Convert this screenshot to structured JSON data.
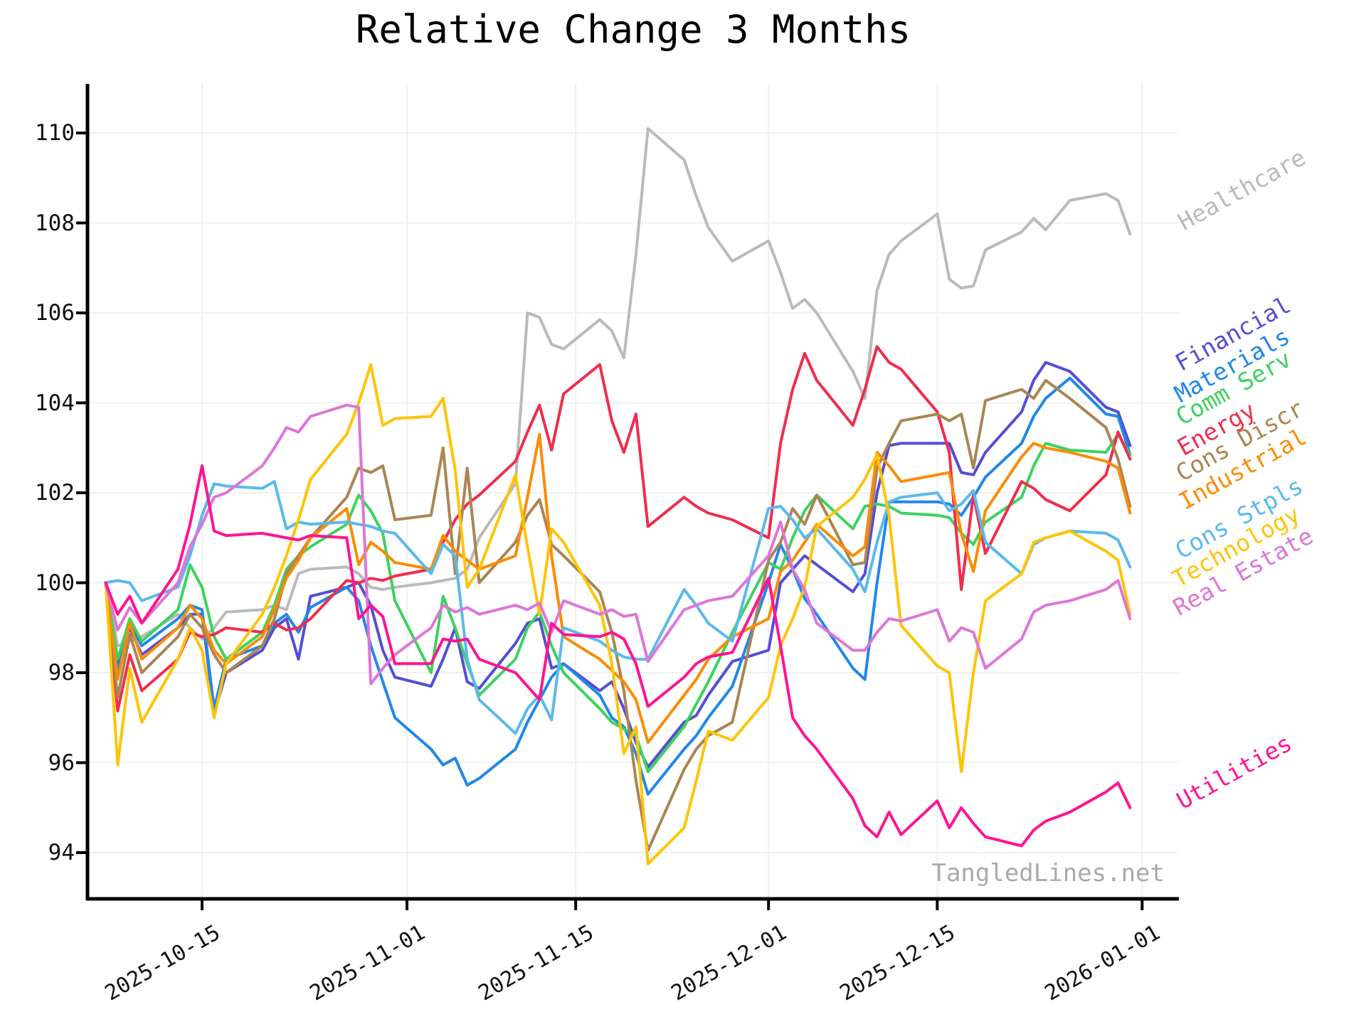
{
  "chart": {
    "title": "Relative Change 3 Months",
    "watermark": "TangledLines.net"
  },
  "chart_data": {
    "type": "line",
    "title": "Relative Change 3 Months",
    "xlabel": "",
    "ylabel": "",
    "grid": true,
    "legend_position": "right-outside-rotated",
    "ylim": [
      92.9,
      111.2
    ],
    "y_ticks": [
      94,
      96,
      98,
      100,
      102,
      104,
      106,
      108,
      110
    ],
    "x_tick_labels": [
      "2025-10-15",
      "2025-11-01",
      "2025-11-15",
      "2025-12-01",
      "2025-12-15",
      "2026-01-01"
    ],
    "x": [
      "2025-10-07",
      "2025-10-08",
      "2025-10-09",
      "2025-10-10",
      "2025-10-13",
      "2025-10-14",
      "2025-10-15",
      "2025-10-16",
      "2025-10-17",
      "2025-10-20",
      "2025-10-21",
      "2025-10-22",
      "2025-10-23",
      "2025-10-24",
      "2025-10-27",
      "2025-10-28",
      "2025-10-29",
      "2025-10-30",
      "2025-10-31",
      "2025-11-03",
      "2025-11-04",
      "2025-11-05",
      "2025-11-06",
      "2025-11-07",
      "2025-11-10",
      "2025-11-11",
      "2025-11-12",
      "2025-11-13",
      "2025-11-14",
      "2025-11-17",
      "2025-11-18",
      "2025-11-19",
      "2025-11-20",
      "2025-11-21",
      "2025-11-24",
      "2025-11-25",
      "2025-11-26",
      "2025-11-28",
      "2025-12-01",
      "2025-12-02",
      "2025-12-03",
      "2025-12-04",
      "2025-12-05",
      "2025-12-08",
      "2025-12-09",
      "2025-12-10",
      "2025-12-11",
      "2025-12-12",
      "2025-12-15",
      "2025-12-16",
      "2025-12-17",
      "2025-12-18",
      "2025-12-19",
      "2025-12-22",
      "2025-12-23",
      "2025-12-24",
      "2025-12-26",
      "2025-12-29",
      "2025-12-30",
      "2025-12-31"
    ],
    "series": [
      {
        "name": "Healthcare",
        "color": "#bababa",
        "values": [
          100.0,
          98.6,
          98.7,
          98.8,
          99.3,
          99.0,
          98.75,
          99.0,
          99.35,
          99.4,
          99.5,
          99.4,
          100.2,
          100.3,
          100.35,
          100.2,
          99.9,
          99.85,
          99.9,
          100.0,
          100.05,
          100.1,
          100.3,
          101.0,
          102.2,
          106.0,
          105.9,
          105.3,
          105.2,
          105.85,
          105.6,
          105.0,
          107.3,
          110.1,
          109.4,
          108.6,
          107.9,
          107.15,
          107.6,
          106.9,
          106.1,
          106.3,
          106.0,
          104.7,
          104.1,
          106.5,
          107.3,
          107.6,
          108.2,
          106.75,
          106.55,
          106.6,
          107.4,
          107.8,
          108.1,
          107.85,
          108.5,
          108.65,
          108.5,
          107.75
        ]
      },
      {
        "name": "Financial",
        "color": "#544ed4",
        "values": [
          100.0,
          98.2,
          99.0,
          98.4,
          99.0,
          99.3,
          99.3,
          97.1,
          98.0,
          98.5,
          99.0,
          99.2,
          98.3,
          99.7,
          99.9,
          100.0,
          99.5,
          98.5,
          97.9,
          97.7,
          98.3,
          99.0,
          97.8,
          97.65,
          98.65,
          99.1,
          99.2,
          98.1,
          98.2,
          97.6,
          97.8,
          97.2,
          96.45,
          95.9,
          96.9,
          97.05,
          97.5,
          98.25,
          98.5,
          100.0,
          100.3,
          100.6,
          100.4,
          99.8,
          100.2,
          102.0,
          103.05,
          103.1,
          103.1,
          103.1,
          102.45,
          102.4,
          102.9,
          103.8,
          104.5,
          104.9,
          104.7,
          103.9,
          103.8,
          103.05
        ]
      },
      {
        "name": "Materials",
        "color": "#2088e8",
        "values": [
          100.0,
          98.0,
          99.1,
          98.6,
          99.2,
          99.5,
          99.4,
          97.2,
          98.3,
          98.6,
          99.1,
          99.3,
          98.9,
          99.45,
          99.9,
          99.6,
          98.6,
          97.8,
          97.0,
          96.3,
          95.95,
          96.1,
          95.5,
          95.65,
          96.3,
          96.9,
          97.4,
          97.9,
          98.2,
          97.5,
          97.0,
          96.8,
          96.2,
          95.3,
          96.3,
          96.6,
          97.0,
          97.7,
          100.0,
          100.85,
          100.3,
          99.65,
          99.3,
          98.1,
          97.85,
          100.0,
          101.8,
          101.8,
          101.8,
          101.75,
          101.5,
          101.9,
          102.35,
          103.1,
          103.7,
          104.1,
          104.55,
          103.75,
          103.7,
          102.85
        ]
      },
      {
        "name": "Comm Serv",
        "color": "#3dd260",
        "values": [
          100.0,
          98.3,
          99.2,
          98.7,
          99.4,
          100.4,
          99.9,
          98.8,
          98.3,
          98.9,
          99.5,
          100.3,
          100.6,
          100.8,
          101.3,
          101.95,
          101.6,
          101.1,
          99.6,
          98.0,
          99.7,
          99.0,
          98.2,
          97.5,
          98.3,
          99.0,
          99.35,
          98.6,
          98.0,
          97.2,
          96.9,
          96.75,
          96.6,
          95.8,
          96.8,
          97.3,
          97.8,
          98.9,
          100.45,
          100.3,
          101.0,
          101.6,
          101.95,
          101.2,
          101.7,
          101.75,
          101.7,
          101.55,
          101.5,
          101.45,
          101.1,
          100.85,
          101.35,
          101.9,
          102.6,
          103.1,
          102.95,
          102.9,
          103.3,
          102.85
        ]
      },
      {
        "name": "Energy",
        "color": "#f02d4d",
        "values": [
          100.0,
          97.15,
          98.4,
          97.6,
          98.3,
          98.9,
          98.8,
          98.85,
          99.0,
          98.9,
          99.1,
          98.95,
          99.0,
          99.2,
          100.05,
          100.0,
          100.1,
          100.05,
          100.15,
          100.3,
          100.9,
          101.4,
          101.75,
          101.95,
          102.7,
          103.35,
          103.95,
          102.95,
          104.2,
          104.85,
          103.6,
          102.9,
          103.75,
          101.25,
          101.9,
          101.7,
          101.55,
          101.4,
          101.0,
          103.1,
          104.3,
          105.1,
          104.5,
          103.5,
          104.3,
          105.25,
          104.9,
          104.75,
          103.8,
          102.9,
          99.85,
          101.95,
          100.65,
          102.25,
          102.1,
          101.85,
          101.6,
          102.4,
          103.35,
          102.75
        ]
      },
      {
        "name": "Cons Discr",
        "color": "#aa8553",
        "values": [
          100.0,
          97.45,
          98.85,
          98.0,
          98.8,
          99.3,
          99.0,
          98.4,
          98.0,
          98.6,
          99.2,
          100.2,
          100.6,
          101.0,
          101.9,
          102.55,
          102.45,
          102.6,
          101.4,
          101.5,
          103.0,
          100.2,
          102.55,
          100.0,
          100.9,
          101.5,
          101.85,
          100.85,
          100.6,
          99.8,
          98.9,
          97.6,
          95.6,
          94.05,
          95.85,
          96.3,
          96.6,
          96.9,
          100.5,
          100.9,
          101.65,
          101.3,
          101.95,
          100.4,
          100.45,
          102.55,
          103.1,
          103.6,
          103.75,
          103.6,
          103.75,
          102.55,
          104.05,
          104.3,
          104.1,
          104.5,
          104.1,
          103.45,
          102.75,
          101.7
        ]
      },
      {
        "name": "Industrial",
        "color": "#fa8c06",
        "values": [
          100.0,
          97.85,
          99.1,
          98.3,
          99.0,
          99.5,
          99.2,
          98.5,
          98.2,
          98.8,
          99.4,
          100.1,
          100.5,
          101.0,
          101.65,
          100.4,
          100.9,
          100.7,
          100.45,
          100.3,
          101.05,
          100.7,
          100.5,
          100.3,
          100.6,
          101.9,
          103.3,
          100.6,
          98.8,
          98.3,
          98.05,
          97.8,
          97.4,
          96.45,
          97.5,
          97.85,
          98.3,
          98.8,
          99.2,
          100.25,
          100.5,
          100.9,
          101.3,
          100.6,
          100.8,
          102.9,
          102.6,
          102.25,
          102.4,
          102.45,
          101.1,
          100.25,
          101.6,
          102.8,
          103.1,
          103.0,
          102.9,
          102.7,
          102.55,
          101.55
        ]
      },
      {
        "name": "Cons Stpls",
        "color": "#5ab9eb",
        "values": [
          100.0,
          100.05,
          100.0,
          99.6,
          99.9,
          100.6,
          101.5,
          102.2,
          102.15,
          102.1,
          102.25,
          101.2,
          101.35,
          101.3,
          101.35,
          101.3,
          101.25,
          101.15,
          101.1,
          100.2,
          100.85,
          100.6,
          98.3,
          97.4,
          96.65,
          97.2,
          97.5,
          96.95,
          99.0,
          98.7,
          98.5,
          98.35,
          98.3,
          98.3,
          99.85,
          99.5,
          99.1,
          98.7,
          101.65,
          101.7,
          101.4,
          101.0,
          101.2,
          100.3,
          99.8,
          100.9,
          101.8,
          101.9,
          102.0,
          101.6,
          101.75,
          102.05,
          100.9,
          100.2,
          100.85,
          101.0,
          101.15,
          101.1,
          100.95,
          100.35
        ]
      },
      {
        "name": "Technology",
        "color": "#ffc408",
        "values": [
          100.0,
          95.95,
          98.1,
          96.9,
          98.3,
          99.0,
          98.5,
          97.0,
          98.2,
          99.3,
          99.9,
          100.6,
          101.4,
          102.3,
          103.3,
          104.0,
          104.85,
          103.5,
          103.65,
          103.7,
          104.1,
          102.5,
          99.9,
          100.3,
          102.4,
          100.8,
          99.3,
          101.2,
          100.9,
          99.5,
          98.2,
          96.2,
          96.8,
          93.75,
          94.55,
          95.6,
          96.7,
          96.5,
          97.45,
          98.6,
          99.2,
          99.9,
          101.25,
          101.9,
          102.3,
          102.85,
          101.5,
          99.05,
          98.15,
          98.0,
          95.8,
          98.0,
          99.6,
          100.2,
          100.9,
          101.0,
          101.15,
          100.7,
          100.5,
          99.3
        ]
      },
      {
        "name": "Real Estate",
        "color": "#de76d7",
        "values": [
          100.0,
          98.95,
          99.45,
          99.1,
          100.0,
          100.8,
          101.3,
          101.9,
          102.0,
          102.6,
          103.0,
          103.45,
          103.35,
          103.7,
          103.95,
          103.9,
          97.75,
          98.1,
          98.4,
          99.0,
          99.5,
          99.35,
          99.45,
          99.3,
          99.5,
          99.4,
          99.55,
          98.9,
          99.6,
          99.3,
          99.4,
          99.25,
          99.3,
          98.25,
          99.4,
          99.5,
          99.6,
          99.7,
          100.6,
          101.35,
          100.3,
          99.85,
          99.1,
          98.5,
          98.5,
          98.9,
          99.2,
          99.15,
          99.4,
          98.7,
          99.0,
          98.9,
          98.1,
          98.75,
          99.35,
          99.5,
          99.6,
          99.85,
          100.05,
          99.2
        ]
      },
      {
        "name": "Utilities",
        "color": "#ff1493",
        "values": [
          100.0,
          99.3,
          99.7,
          99.1,
          100.3,
          101.3,
          102.6,
          101.15,
          101.05,
          101.1,
          101.05,
          101.0,
          100.95,
          101.05,
          101.0,
          99.2,
          99.5,
          99.25,
          98.2,
          98.2,
          98.75,
          98.7,
          98.75,
          98.3,
          98.0,
          97.7,
          97.4,
          99.1,
          98.85,
          98.8,
          98.9,
          98.75,
          98.2,
          97.25,
          97.9,
          98.2,
          98.35,
          98.45,
          100.1,
          98.6,
          97.0,
          96.6,
          96.3,
          95.2,
          94.6,
          94.35,
          94.9,
          94.4,
          95.15,
          94.55,
          95.0,
          94.65,
          94.35,
          94.15,
          94.5,
          94.7,
          94.9,
          95.35,
          95.55,
          95.0
        ]
      }
    ]
  }
}
